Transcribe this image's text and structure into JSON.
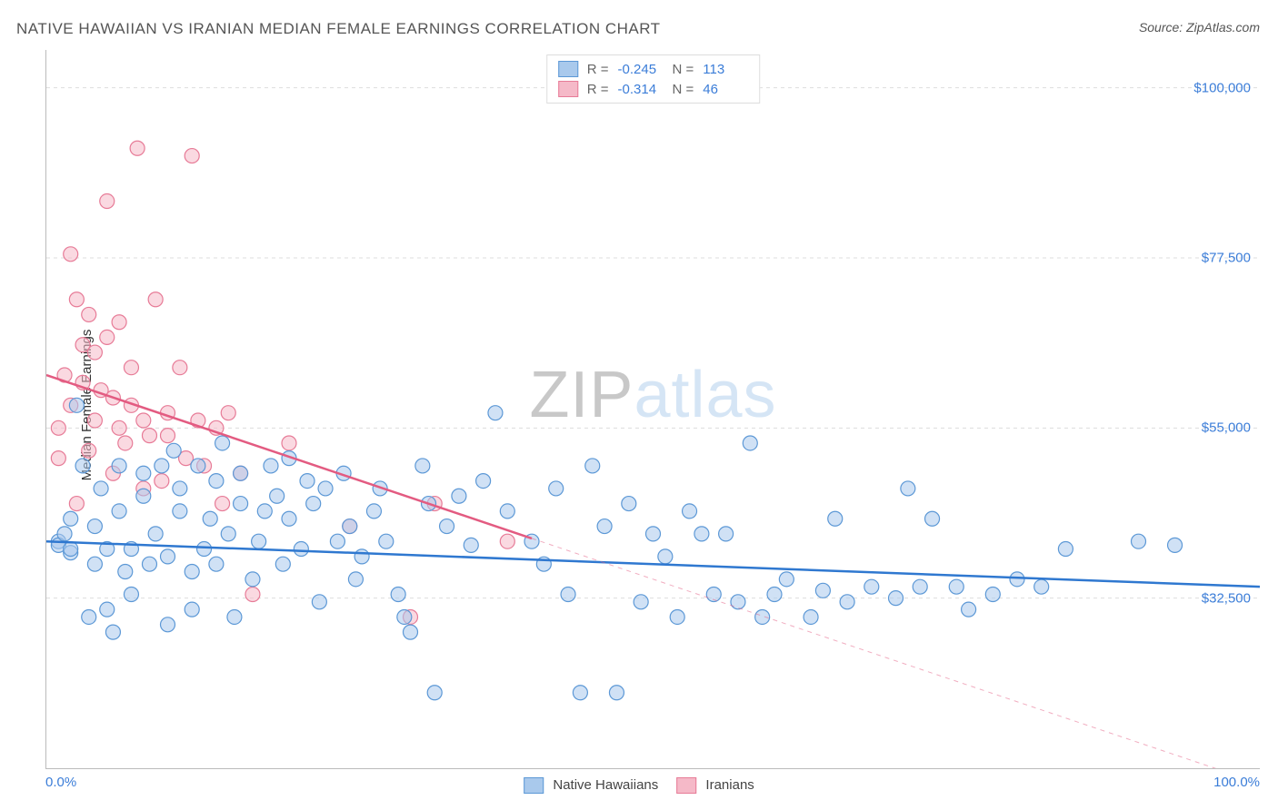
{
  "title": "NATIVE HAWAIIAN VS IRANIAN MEDIAN FEMALE EARNINGS CORRELATION CHART",
  "source": "Source: ZipAtlas.com",
  "ylabel": "Median Female Earnings",
  "watermark": {
    "zip": "ZIP",
    "atlas": "atlas"
  },
  "chart": {
    "type": "scatter",
    "xlim": [
      0,
      100
    ],
    "ylim": [
      10000,
      105000
    ],
    "background_color": "#ffffff",
    "grid_color": "#dddddd",
    "grid_dash": "4,4",
    "axis_color": "#bbbbbb",
    "marker_radius": 8,
    "marker_stroke_width": 1.2,
    "line_width": 2.5,
    "font_size_axis": 15,
    "font_size_title": 17,
    "tick_color": "#3b7dd8",
    "ygrid": [
      {
        "value": 32500,
        "label": "$32,500"
      },
      {
        "value": 55000,
        "label": "$55,000"
      },
      {
        "value": 77500,
        "label": "$77,500"
      },
      {
        "value": 100000,
        "label": "$100,000"
      }
    ],
    "xticks": [
      {
        "value": 0,
        "label": "0.0%"
      },
      {
        "value": 100,
        "label": "100.0%"
      }
    ],
    "series": [
      {
        "key": "native_hawaiians",
        "label": "Native Hawaiians",
        "color_fill": "#a9c9ec",
        "color_stroke": "#5c98d6",
        "line_color": "#2f78d0",
        "R": "-0.245",
        "N": "113",
        "trend": {
          "x1": 0,
          "y1": 40000,
          "x2": 100,
          "y2": 34000,
          "dash_after_x": null
        },
        "points": [
          [
            1,
            40000
          ],
          [
            1,
            39500
          ],
          [
            1.5,
            41000
          ],
          [
            2,
            38500
          ],
          [
            2,
            39000
          ],
          [
            2,
            43000
          ],
          [
            2.5,
            58000
          ],
          [
            3,
            50000
          ],
          [
            3.5,
            30000
          ],
          [
            4,
            42000
          ],
          [
            4,
            37000
          ],
          [
            4.5,
            47000
          ],
          [
            5,
            39000
          ],
          [
            5,
            31000
          ],
          [
            5.5,
            28000
          ],
          [
            6,
            44000
          ],
          [
            6,
            50000
          ],
          [
            6.5,
            36000
          ],
          [
            7,
            39000
          ],
          [
            7,
            33000
          ],
          [
            8,
            49000
          ],
          [
            8,
            46000
          ],
          [
            8.5,
            37000
          ],
          [
            9,
            41000
          ],
          [
            9.5,
            50000
          ],
          [
            10,
            38000
          ],
          [
            10,
            29000
          ],
          [
            10.5,
            52000
          ],
          [
            11,
            47000
          ],
          [
            11,
            44000
          ],
          [
            12,
            36000
          ],
          [
            12,
            31000
          ],
          [
            12.5,
            50000
          ],
          [
            13,
            39000
          ],
          [
            13.5,
            43000
          ],
          [
            14,
            48000
          ],
          [
            14,
            37000
          ],
          [
            14.5,
            53000
          ],
          [
            15,
            41000
          ],
          [
            15.5,
            30000
          ],
          [
            16,
            45000
          ],
          [
            16,
            49000
          ],
          [
            17,
            35000
          ],
          [
            17.5,
            40000
          ],
          [
            18,
            44000
          ],
          [
            18.5,
            50000
          ],
          [
            19,
            46000
          ],
          [
            19.5,
            37000
          ],
          [
            20,
            43000
          ],
          [
            20,
            51000
          ],
          [
            21,
            39000
          ],
          [
            21.5,
            48000
          ],
          [
            22,
            45000
          ],
          [
            22.5,
            32000
          ],
          [
            23,
            47000
          ],
          [
            24,
            40000
          ],
          [
            24.5,
            49000
          ],
          [
            25,
            42000
          ],
          [
            25.5,
            35000
          ],
          [
            26,
            38000
          ],
          [
            27,
            44000
          ],
          [
            27.5,
            47000
          ],
          [
            28,
            40000
          ],
          [
            29,
            33000
          ],
          [
            29.5,
            30000
          ],
          [
            30,
            28000
          ],
          [
            31,
            50000
          ],
          [
            31.5,
            45000
          ],
          [
            32,
            20000
          ],
          [
            33,
            42000
          ],
          [
            34,
            46000
          ],
          [
            35,
            39500
          ],
          [
            36,
            48000
          ],
          [
            37,
            57000
          ],
          [
            38,
            44000
          ],
          [
            40,
            40000
          ],
          [
            41,
            37000
          ],
          [
            42,
            47000
          ],
          [
            43,
            33000
          ],
          [
            44,
            20000
          ],
          [
            45,
            50000
          ],
          [
            46,
            42000
          ],
          [
            47,
            20000
          ],
          [
            48,
            45000
          ],
          [
            49,
            32000
          ],
          [
            50,
            41000
          ],
          [
            51,
            38000
          ],
          [
            52,
            30000
          ],
          [
            53,
            44000
          ],
          [
            54,
            41000
          ],
          [
            55,
            33000
          ],
          [
            56,
            41000
          ],
          [
            57,
            32000
          ],
          [
            58,
            53000
          ],
          [
            59,
            30000
          ],
          [
            60,
            33000
          ],
          [
            61,
            35000
          ],
          [
            63,
            30000
          ],
          [
            64,
            33500
          ],
          [
            65,
            43000
          ],
          [
            66,
            32000
          ],
          [
            68,
            34000
          ],
          [
            70,
            32500
          ],
          [
            71,
            47000
          ],
          [
            72,
            34000
          ],
          [
            73,
            43000
          ],
          [
            75,
            34000
          ],
          [
            76,
            31000
          ],
          [
            78,
            33000
          ],
          [
            80,
            35000
          ],
          [
            82,
            34000
          ],
          [
            84,
            39000
          ],
          [
            90,
            40000
          ],
          [
            93,
            39500
          ]
        ]
      },
      {
        "key": "iranians",
        "label": "Iranians",
        "color_fill": "#f5b9c8",
        "color_stroke": "#e77b97",
        "line_color": "#e35b81",
        "R": "-0.314",
        "N": "46",
        "trend": {
          "x1": 0,
          "y1": 62000,
          "x2": 100,
          "y2": 8000,
          "dash_after_x": 40
        },
        "points": [
          [
            1,
            55000
          ],
          [
            1,
            51000
          ],
          [
            1.5,
            62000
          ],
          [
            2,
            78000
          ],
          [
            2,
            58000
          ],
          [
            2.5,
            45000
          ],
          [
            2.5,
            72000
          ],
          [
            3,
            61000
          ],
          [
            3,
            66000
          ],
          [
            3.5,
            70000
          ],
          [
            3.5,
            52000
          ],
          [
            4,
            56000
          ],
          [
            4,
            65000
          ],
          [
            4.5,
            60000
          ],
          [
            5,
            67000
          ],
          [
            5,
            85000
          ],
          [
            5.5,
            49000
          ],
          [
            5.5,
            59000
          ],
          [
            6,
            55000
          ],
          [
            6,
            69000
          ],
          [
            6.5,
            53000
          ],
          [
            7,
            63000
          ],
          [
            7,
            58000
          ],
          [
            7.5,
            92000
          ],
          [
            8,
            47000
          ],
          [
            8,
            56000
          ],
          [
            8.5,
            54000
          ],
          [
            9,
            72000
          ],
          [
            9.5,
            48000
          ],
          [
            10,
            57000
          ],
          [
            10,
            54000
          ],
          [
            11,
            63000
          ],
          [
            11.5,
            51000
          ],
          [
            12,
            91000
          ],
          [
            12.5,
            56000
          ],
          [
            13,
            50000
          ],
          [
            14,
            55000
          ],
          [
            14.5,
            45000
          ],
          [
            15,
            57000
          ],
          [
            16,
            49000
          ],
          [
            17,
            33000
          ],
          [
            20,
            53000
          ],
          [
            25,
            42000
          ],
          [
            30,
            30000
          ],
          [
            32,
            45000
          ],
          [
            38,
            40000
          ]
        ]
      }
    ]
  },
  "legend_top": {
    "r_label": "R =",
    "n_label": "N ="
  }
}
